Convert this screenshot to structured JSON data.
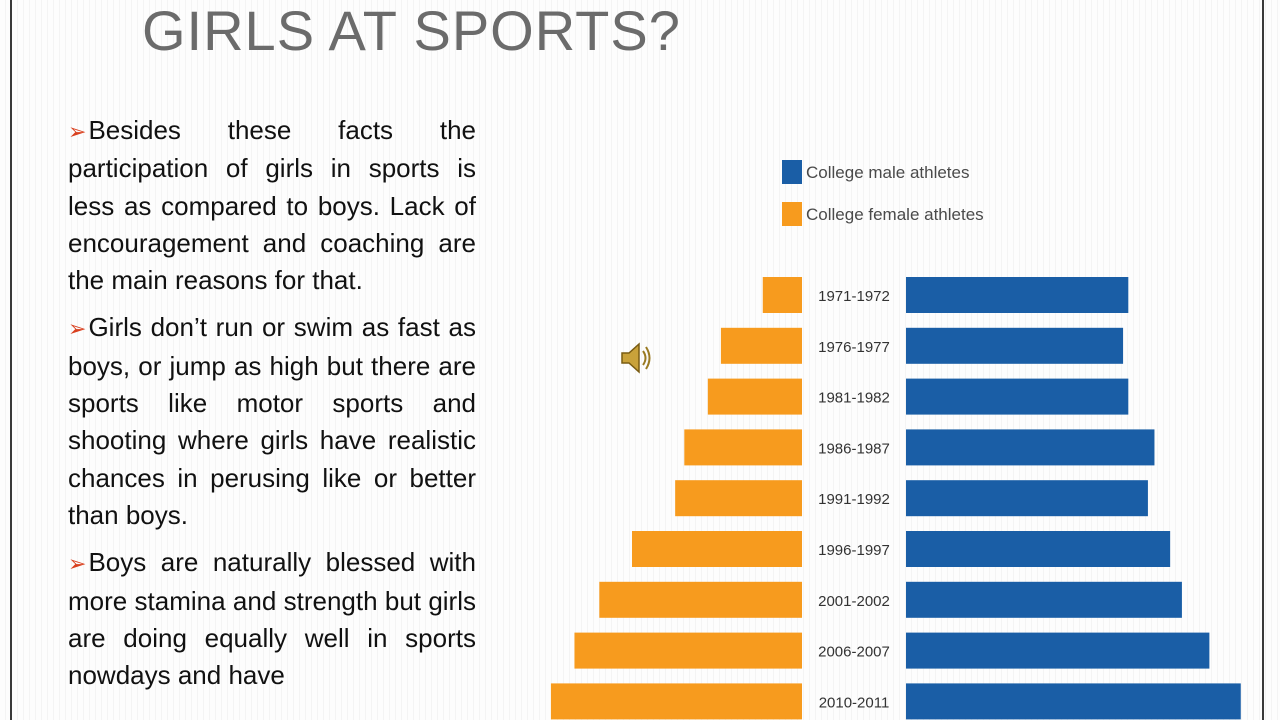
{
  "slide": {
    "title": "GIRLS AT SPORTS?",
    "bullet_symbol": "➢",
    "paragraphs": [
      "Besides these facts the participation of girls in sports is less as compared to boys. Lack of encouragement and coaching are the main reasons for that.",
      "Girls don’t run or swim as fast as boys, or jump as high but there are sports like motor sports and shooting where girls have realistic chances in perusing like or better than boys.",
      "Boys are naturally blessed with more stamina and strength but girls are doing equally well in sports nowdays and have"
    ],
    "speaker_icon": "speaker-icon"
  },
  "chart_data": {
    "type": "bar",
    "orientation": "horizontal",
    "layout": "butterfly",
    "categories": [
      "1971-1972",
      "1976-1977",
      "1981-1982",
      "1986-1987",
      "1991-1992",
      "1996-1997",
      "2001-2002",
      "2006-2007",
      "2010-2011"
    ],
    "series": [
      {
        "name": "College male athletes",
        "color": "#1a5ea6",
        "values": [
          170,
          166,
          170,
          190,
          185,
          202,
          211,
          232,
          256
        ]
      },
      {
        "name": "College female athletes",
        "color": "#f79b1e",
        "values": [
          30,
          62,
          72,
          90,
          97,
          130,
          155,
          174,
          192
        ]
      }
    ],
    "legend": "top",
    "grid": false,
    "xlim": [
      0,
      260
    ]
  }
}
